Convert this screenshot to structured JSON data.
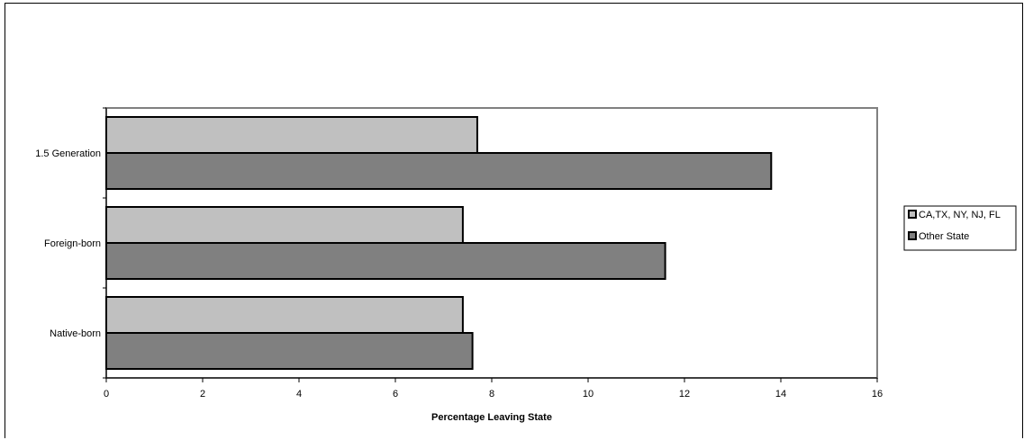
{
  "chart_data": {
    "type": "bar",
    "orientation": "horizontal",
    "categories": [
      "1.5 Generation",
      "Foreign-born",
      "Native-born"
    ],
    "series": [
      {
        "name": "CA,TX, NY, NJ, FL",
        "values": [
          7.7,
          7.4,
          7.4
        ],
        "color": "#c0c0c0"
      },
      {
        "name": "Other State",
        "values": [
          13.8,
          11.6,
          7.6
        ],
        "color": "#808080"
      }
    ],
    "xlabel": "Percentage Leaving State",
    "xlim": [
      0,
      16
    ],
    "xticks": [
      0,
      2,
      4,
      6,
      8,
      10,
      12,
      14,
      16
    ],
    "grid": false,
    "legend_position": "right"
  }
}
